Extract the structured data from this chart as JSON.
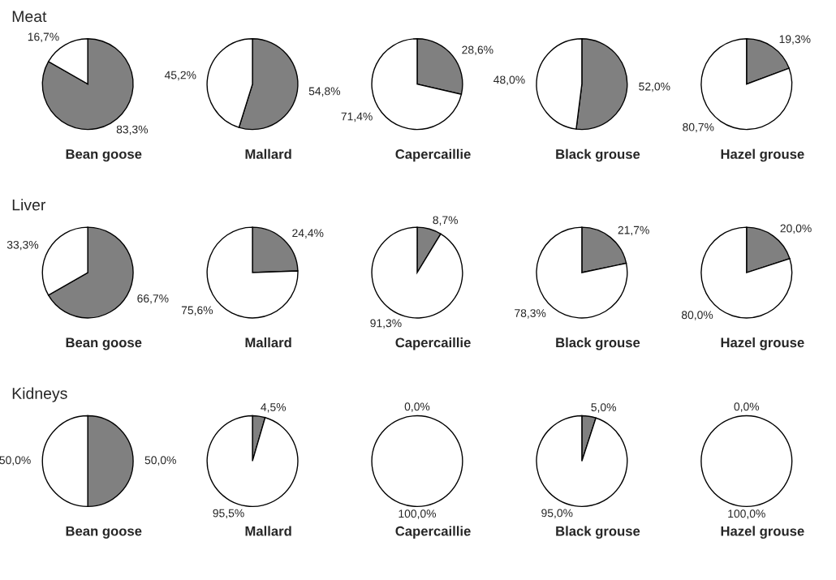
{
  "chart_data": [
    {
      "type": "pie",
      "title": "Meat",
      "xlabel": "Bean goose",
      "categories": [
        null,
        null
      ],
      "values": [
        83.3,
        16.7
      ],
      "colors": [
        "#808080",
        "#ffffff"
      ],
      "value_labels": [
        "83,3%",
        "16,7%"
      ]
    },
    {
      "type": "pie",
      "xlabel": "Mallard",
      "categories": [
        null,
        null
      ],
      "values": [
        54.8,
        45.2
      ],
      "colors": [
        "#808080",
        "#ffffff"
      ],
      "value_labels": [
        "54,8%",
        "45,2%"
      ]
    },
    {
      "type": "pie",
      "xlabel": "Capercaillie",
      "categories": [
        null,
        null
      ],
      "values": [
        28.6,
        71.4
      ],
      "colors": [
        "#808080",
        "#ffffff"
      ],
      "value_labels": [
        "28,6%",
        "71,4%"
      ]
    },
    {
      "type": "pie",
      "xlabel": "Black grouse",
      "categories": [
        null,
        null
      ],
      "values": [
        52.0,
        48.0
      ],
      "colors": [
        "#808080",
        "#ffffff"
      ],
      "value_labels": [
        "52,0%",
        "48,0%"
      ]
    },
    {
      "type": "pie",
      "xlabel": "Hazel grouse",
      "categories": [
        null,
        null
      ],
      "values": [
        19.3,
        80.7
      ],
      "colors": [
        "#808080",
        "#ffffff"
      ],
      "value_labels": [
        "19,3%",
        "80,7%"
      ]
    },
    {
      "type": "pie",
      "title": "Liver",
      "xlabel": "Bean goose",
      "categories": [
        null,
        null
      ],
      "values": [
        66.7,
        33.3
      ],
      "colors": [
        "#808080",
        "#ffffff"
      ],
      "value_labels": [
        "66,7%",
        "33,3%"
      ]
    },
    {
      "type": "pie",
      "xlabel": "Mallard",
      "categories": [
        null,
        null
      ],
      "values": [
        24.4,
        75.6
      ],
      "colors": [
        "#808080",
        "#ffffff"
      ],
      "value_labels": [
        "24,4%",
        "75,6%"
      ]
    },
    {
      "type": "pie",
      "xlabel": "Capercaillie",
      "categories": [
        null,
        null
      ],
      "values": [
        8.7,
        91.3
      ],
      "colors": [
        "#808080",
        "#ffffff"
      ],
      "value_labels": [
        "8,7%",
        "91,3%"
      ]
    },
    {
      "type": "pie",
      "xlabel": "Black grouse",
      "categories": [
        null,
        null
      ],
      "values": [
        21.7,
        78.3
      ],
      "colors": [
        "#808080",
        "#ffffff"
      ],
      "value_labels": [
        "21,7%",
        "78,3%"
      ]
    },
    {
      "type": "pie",
      "xlabel": "Hazel grouse",
      "categories": [
        null,
        null
      ],
      "values": [
        20.0,
        80.0
      ],
      "colors": [
        "#808080",
        "#ffffff"
      ],
      "value_labels": [
        "20,0%",
        "80,0%"
      ]
    },
    {
      "type": "pie",
      "title": "Kidneys",
      "xlabel": "Bean goose",
      "categories": [
        null,
        null
      ],
      "values": [
        50.0,
        50.0
      ],
      "colors": [
        "#808080",
        "#ffffff"
      ],
      "value_labels": [
        "50,0%",
        "50,0%"
      ]
    },
    {
      "type": "pie",
      "xlabel": "Mallard",
      "categories": [
        null,
        null
      ],
      "values": [
        4.5,
        95.5
      ],
      "colors": [
        "#808080",
        "#ffffff"
      ],
      "value_labels": [
        "4,5%",
        "95,5%"
      ]
    },
    {
      "type": "pie",
      "xlabel": "Capercaillie",
      "categories": [
        null,
        null
      ],
      "values": [
        0.0,
        100.0
      ],
      "colors": [
        "#808080",
        "#ffffff"
      ],
      "value_labels": [
        "0,0%",
        "100,0%"
      ]
    },
    {
      "type": "pie",
      "xlabel": "Black grouse",
      "categories": [
        null,
        null
      ],
      "values": [
        5.0,
        95.0
      ],
      "colors": [
        "#808080",
        "#ffffff"
      ],
      "value_labels": [
        "5,0%",
        "95,0%"
      ]
    },
    {
      "type": "pie",
      "xlabel": "Hazel grouse",
      "categories": [
        null,
        null
      ],
      "values": [
        0.0,
        100.0
      ],
      "colors": [
        "#808080",
        "#ffffff"
      ],
      "value_labels": [
        "0,0%",
        "100,0%"
      ]
    }
  ]
}
